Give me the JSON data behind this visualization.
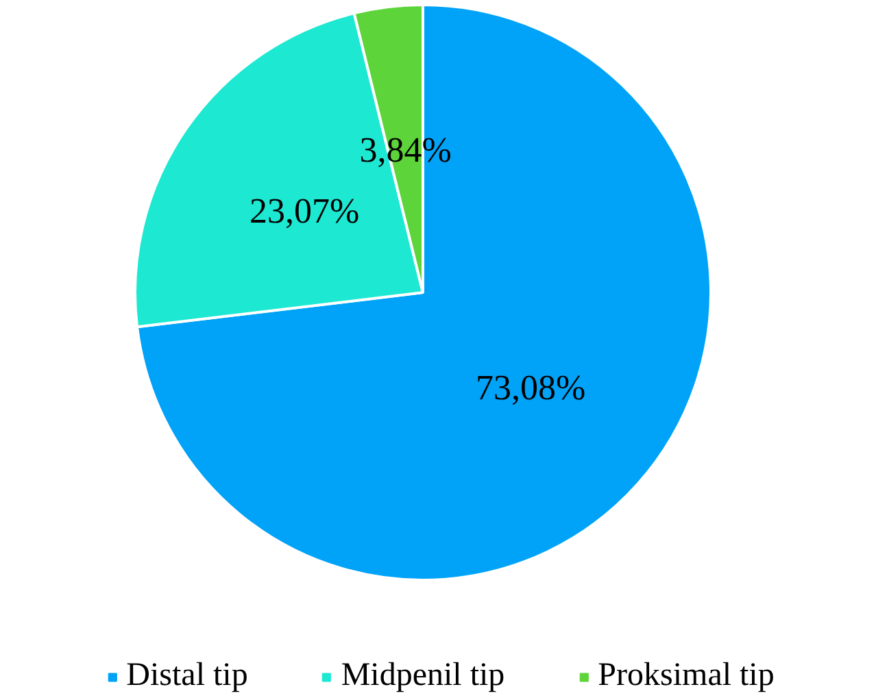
{
  "chart_data": {
    "type": "pie",
    "categories": [
      "Distal tip",
      "Midpenil tip",
      "Proksimal tip"
    ],
    "values": [
      73.08,
      23.07,
      3.84
    ],
    "value_labels": [
      "73,08%",
      "23,07%",
      "3,84%"
    ],
    "colors": [
      "#00a3f7",
      "#1de8d2",
      "#5dd43a"
    ],
    "legend": "bottom"
  }
}
